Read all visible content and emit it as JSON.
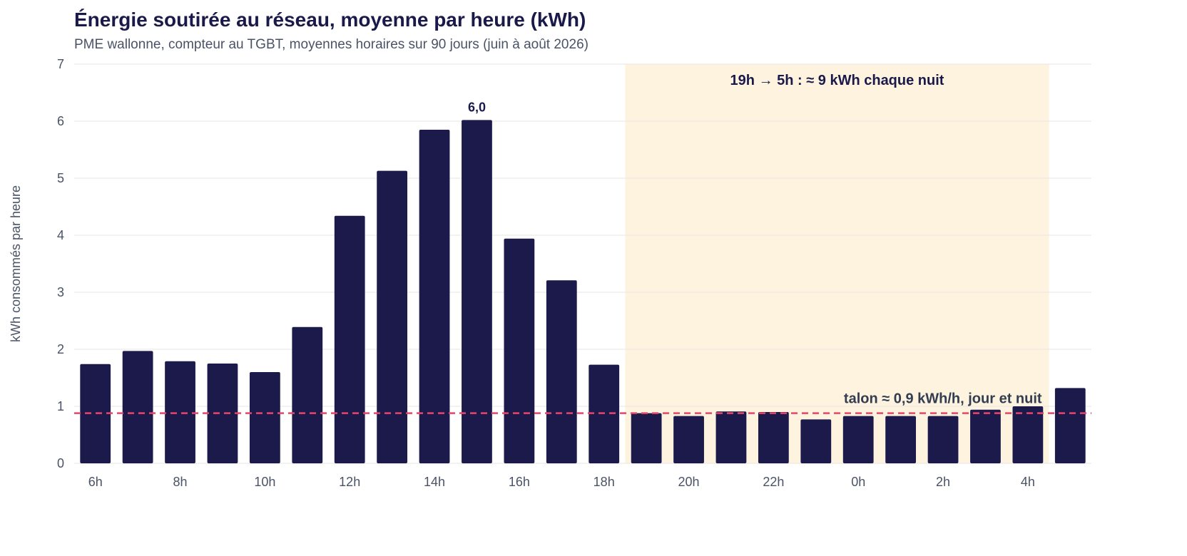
{
  "chart_data": {
    "type": "bar",
    "title": "Énergie soutirée au réseau, moyenne par heure (kWh)",
    "subtitle": "PME wallonne, compteur au TGBT, moyennes horaires sur 90 jours (juin à août 2026)",
    "ylabel": "kWh consommés par heure",
    "xlabel": "",
    "ylim": [
      0,
      7
    ],
    "yticks": [
      0,
      1,
      2,
      3,
      4,
      5,
      6,
      7
    ],
    "grid": true,
    "categories": [
      "6h",
      "7h",
      "8h",
      "9h",
      "10h",
      "11h",
      "12h",
      "13h",
      "14h",
      "15h",
      "16h",
      "17h",
      "18h",
      "19h",
      "20h",
      "21h",
      "22h",
      "23h",
      "0h",
      "1h",
      "2h",
      "3h",
      "4h",
      "5h"
    ],
    "tick_labels": [
      "6h",
      "",
      "8h",
      "",
      "10h",
      "",
      "12h",
      "",
      "14h",
      "",
      "16h",
      "",
      "18h",
      "",
      "20h",
      "",
      "22h",
      "",
      "0h",
      "",
      "2h",
      "",
      "4h",
      ""
    ],
    "values": [
      1.74,
      1.97,
      1.79,
      1.75,
      1.6,
      2.39,
      4.34,
      5.13,
      5.85,
      6.02,
      3.94,
      3.21,
      1.73,
      0.88,
      0.83,
      0.91,
      0.9,
      0.77,
      0.83,
      0.83,
      0.83,
      0.94,
      1.0,
      1.32
    ],
    "peak_label": {
      "index": 9,
      "text": "6,0"
    },
    "night_band": {
      "from_index": 13,
      "to_index": 22,
      "label": "19h → 5h : ≈ 9 kWh chaque nuit"
    },
    "baseline": {
      "value": 0.88,
      "label": "talon ≈ 0,9 kWh/h, jour et nuit"
    },
    "colors": {
      "bar": "#1b1a4b",
      "band": "#fdf3df",
      "baseline": "#e8456b",
      "grid": "#e6e6e6"
    }
  }
}
